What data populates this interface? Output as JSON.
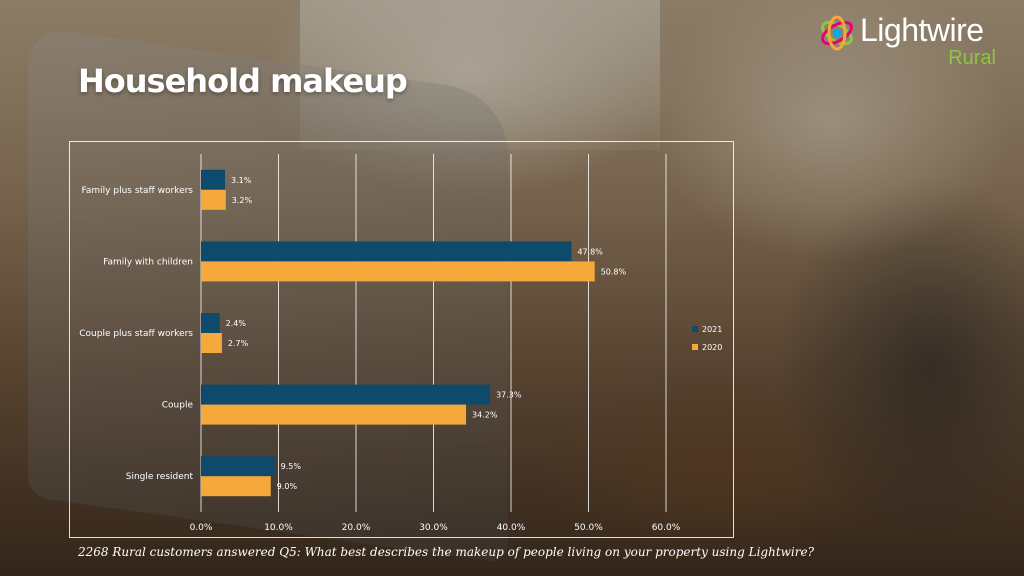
{
  "title": "Household makeup",
  "logo": {
    "name": "Lightwire",
    "sub": "Rural"
  },
  "footnote": "2268 Rural customers answered Q5: What best describes the makeup of people living on your property using Lightwire?",
  "colors": {
    "series_2021": "#0d4a6b",
    "series_2020": "#f5a93a",
    "text": "#ffffff"
  },
  "chart_data": {
    "type": "bar",
    "orientation": "horizontal",
    "categories": [
      "Family plus staff workers",
      "Family with children",
      "Couple plus staff workers",
      "Couple",
      "Single resident"
    ],
    "series": [
      {
        "name": "2021",
        "values": [
          3.1,
          47.8,
          2.4,
          37.3,
          9.5
        ],
        "labels": [
          "3.1%",
          "47.8%",
          "2.4%",
          "37.3%",
          "9.5%"
        ]
      },
      {
        "name": "2020",
        "values": [
          3.2,
          50.8,
          2.7,
          34.2,
          9.0
        ],
        "labels": [
          "3.2%",
          "50.8%",
          "2.7%",
          "34.2%",
          "9.0%"
        ]
      }
    ],
    "xlim": [
      0,
      60
    ],
    "xticks": [
      "0.0%",
      "10.0%",
      "20.0%",
      "30.0%",
      "40.0%",
      "50.0%",
      "60.0%"
    ],
    "grid": true,
    "legend": "right"
  }
}
